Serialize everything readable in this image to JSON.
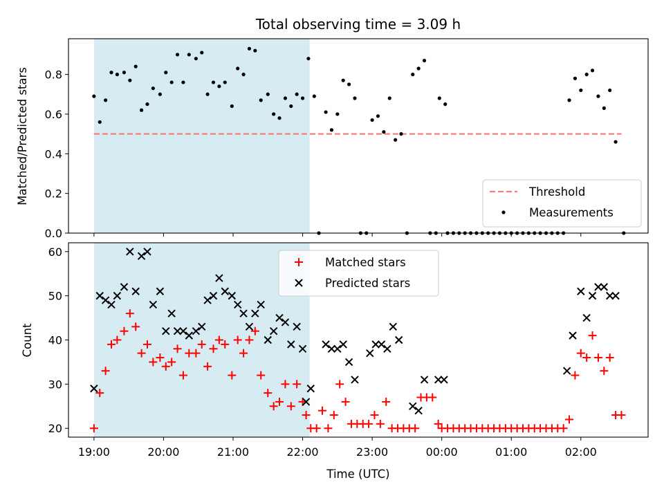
{
  "chart_data": [
    {
      "panel": "top",
      "type": "scatter",
      "title": "Total observing time = 3.09 h",
      "xlabel": "",
      "ylabel": "Matched/Predicted stars",
      "xlim": [
        "18:38",
        "02:58"
      ],
      "ylim": [
        0,
        0.98
      ],
      "yticks": [
        0.0,
        0.2,
        0.4,
        0.6,
        0.8
      ],
      "ytick_labels": [
        "0.0",
        "0.2",
        "0.4",
        "0.6",
        "0.8"
      ],
      "shaded_interval": [
        "19:00",
        "22:06"
      ],
      "legend_position": "lower right",
      "threshold": {
        "name": "Threshold",
        "color": "#f08080",
        "style": "dashed",
        "x": [
          "19:00",
          "02:35"
        ],
        "y": [
          0.5,
          0.5
        ]
      },
      "series": [
        {
          "name": "Measurements",
          "color": "#000000",
          "marker": "point",
          "points": [
            [
              "19:00",
              0.69
            ],
            [
              "19:05",
              0.56
            ],
            [
              "19:10",
              0.67
            ],
            [
              "19:15",
              0.81
            ],
            [
              "19:20",
              0.8
            ],
            [
              "19:26",
              0.81
            ],
            [
              "19:31",
              0.77
            ],
            [
              "19:36",
              0.84
            ],
            [
              "19:41",
              0.62
            ],
            [
              "19:46",
              0.65
            ],
            [
              "19:51",
              0.73
            ],
            [
              "19:57",
              0.7
            ],
            [
              "20:02",
              0.81
            ],
            [
              "20:07",
              0.76
            ],
            [
              "20:12",
              0.9
            ],
            [
              "20:17",
              0.76
            ],
            [
              "20:22",
              0.9
            ],
            [
              "20:28",
              0.88
            ],
            [
              "20:33",
              0.91
            ],
            [
              "20:38",
              0.7
            ],
            [
              "20:43",
              0.76
            ],
            [
              "20:48",
              0.74
            ],
            [
              "20:53",
              0.76
            ],
            [
              "20:59",
              0.64
            ],
            [
              "21:04",
              0.83
            ],
            [
              "21:09",
              0.8
            ],
            [
              "21:14",
              0.93
            ],
            [
              "21:19",
              0.92
            ],
            [
              "21:24",
              0.67
            ],
            [
              "21:30",
              0.7
            ],
            [
              "21:35",
              0.6
            ],
            [
              "21:40",
              0.58
            ],
            [
              "21:45",
              0.68
            ],
            [
              "21:50",
              0.64
            ],
            [
              "21:55",
              0.7
            ],
            [
              "22:00",
              0.68
            ],
            [
              "22:05",
              0.88
            ],
            [
              "22:10",
              0.69
            ],
            [
              "22:14",
              0.0
            ],
            [
              "22:20",
              0.61
            ],
            [
              "22:25",
              0.52
            ],
            [
              "22:30",
              0.6
            ],
            [
              "22:35",
              0.77
            ],
            [
              "22:40",
              0.75
            ],
            [
              "22:45",
              0.68
            ],
            [
              "22:50",
              0.0
            ],
            [
              "22:55",
              0.0
            ],
            [
              "23:00",
              0.57
            ],
            [
              "23:05",
              0.59
            ],
            [
              "23:10",
              0.51
            ],
            [
              "23:15",
              0.68
            ],
            [
              "23:20",
              0.47
            ],
            [
              "23:25",
              0.5
            ],
            [
              "23:30",
              0.0
            ],
            [
              "23:35",
              0.8
            ],
            [
              "23:40",
              0.83
            ],
            [
              "23:45",
              0.87
            ],
            [
              "23:50",
              0.0
            ],
            [
              "23:55",
              0.0
            ],
            [
              "23:58",
              0.68
            ],
            [
              "00:03",
              0.65
            ],
            [
              "00:05",
              0.0
            ],
            [
              "00:10",
              0.0
            ],
            [
              "00:15",
              0.0
            ],
            [
              "00:20",
              0.0
            ],
            [
              "00:25",
              0.0
            ],
            [
              "00:30",
              0.0
            ],
            [
              "00:35",
              0.0
            ],
            [
              "00:40",
              0.0
            ],
            [
              "00:45",
              0.0
            ],
            [
              "00:50",
              0.0
            ],
            [
              "00:55",
              0.0
            ],
            [
              "01:00",
              0.0
            ],
            [
              "01:05",
              0.0
            ],
            [
              "01:10",
              0.0
            ],
            [
              "01:15",
              0.0
            ],
            [
              "01:20",
              0.0
            ],
            [
              "01:25",
              0.0
            ],
            [
              "01:30",
              0.0
            ],
            [
              "01:35",
              0.0
            ],
            [
              "01:40",
              0.0
            ],
            [
              "01:45",
              0.0
            ],
            [
              "01:50",
              0.67
            ],
            [
              "01:55",
              0.78
            ],
            [
              "02:00",
              0.72
            ],
            [
              "02:05",
              0.8
            ],
            [
              "02:10",
              0.82
            ],
            [
              "02:15",
              0.69
            ],
            [
              "02:20",
              0.63
            ],
            [
              "02:25",
              0.72
            ],
            [
              "02:30",
              0.46
            ],
            [
              "02:37",
              0.0
            ]
          ]
        }
      ]
    },
    {
      "panel": "bottom",
      "type": "scatter",
      "title": "",
      "xlabel": "Time (UTC)",
      "ylabel": "Count",
      "xlim": [
        "18:38",
        "02:58"
      ],
      "ylim": [
        18,
        62
      ],
      "xticks": [
        "19:00",
        "20:00",
        "21:00",
        "22:00",
        "23:00",
        "00:00",
        "01:00",
        "02:00"
      ],
      "yticks": [
        20,
        30,
        40,
        50,
        60
      ],
      "shaded_interval": [
        "19:00",
        "22:06"
      ],
      "legend_position": "upper center",
      "series": [
        {
          "name": "Matched stars",
          "color": "#ff0000",
          "marker": "plus",
          "points": [
            [
              "19:00",
              20
            ],
            [
              "19:05",
              28
            ],
            [
              "19:10",
              33
            ],
            [
              "19:15",
              39
            ],
            [
              "19:20",
              40
            ],
            [
              "19:26",
              42
            ],
            [
              "19:31",
              46
            ],
            [
              "19:36",
              43
            ],
            [
              "19:41",
              37
            ],
            [
              "19:46",
              39
            ],
            [
              "19:51",
              35
            ],
            [
              "19:57",
              36
            ],
            [
              "20:02",
              34
            ],
            [
              "20:07",
              35
            ],
            [
              "20:12",
              38
            ],
            [
              "20:17",
              32
            ],
            [
              "20:22",
              37
            ],
            [
              "20:28",
              37
            ],
            [
              "20:33",
              39
            ],
            [
              "20:38",
              34
            ],
            [
              "20:43",
              38
            ],
            [
              "20:48",
              40
            ],
            [
              "20:53",
              39
            ],
            [
              "20:59",
              32
            ],
            [
              "21:04",
              40
            ],
            [
              "21:09",
              37
            ],
            [
              "21:14",
              40
            ],
            [
              "21:19",
              42
            ],
            [
              "21:24",
              32
            ],
            [
              "21:30",
              28
            ],
            [
              "21:35",
              25
            ],
            [
              "21:40",
              26
            ],
            [
              "21:45",
              30
            ],
            [
              "21:50",
              25
            ],
            [
              "21:55",
              30
            ],
            [
              "22:00",
              26
            ],
            [
              "22:03",
              23
            ],
            [
              "22:07",
              20
            ],
            [
              "22:12",
              20
            ],
            [
              "22:17",
              24
            ],
            [
              "22:22",
              20
            ],
            [
              "22:27",
              23
            ],
            [
              "22:32",
              30
            ],
            [
              "22:37",
              26
            ],
            [
              "22:42",
              21
            ],
            [
              "22:47",
              21
            ],
            [
              "22:52",
              21
            ],
            [
              "22:57",
              21
            ],
            [
              "23:02",
              23
            ],
            [
              "23:07",
              21
            ],
            [
              "23:12",
              26
            ],
            [
              "23:17",
              20
            ],
            [
              "23:22",
              20
            ],
            [
              "23:27",
              20
            ],
            [
              "23:32",
              20
            ],
            [
              "23:37",
              20
            ],
            [
              "23:42",
              27
            ],
            [
              "23:47",
              27
            ],
            [
              "23:52",
              27
            ],
            [
              "23:57",
              21
            ],
            [
              "00:00",
              20
            ],
            [
              "00:05",
              20
            ],
            [
              "00:10",
              20
            ],
            [
              "00:15",
              20
            ],
            [
              "00:20",
              20
            ],
            [
              "00:25",
              20
            ],
            [
              "00:30",
              20
            ],
            [
              "00:35",
              20
            ],
            [
              "00:40",
              20
            ],
            [
              "00:45",
              20
            ],
            [
              "00:50",
              20
            ],
            [
              "00:55",
              20
            ],
            [
              "01:00",
              20
            ],
            [
              "01:05",
              20
            ],
            [
              "01:10",
              20
            ],
            [
              "01:15",
              20
            ],
            [
              "01:20",
              20
            ],
            [
              "01:25",
              20
            ],
            [
              "01:30",
              20
            ],
            [
              "01:35",
              20
            ],
            [
              "01:40",
              20
            ],
            [
              "01:45",
              20
            ],
            [
              "01:50",
              22
            ],
            [
              "01:55",
              32
            ],
            [
              "02:00",
              37
            ],
            [
              "02:05",
              36
            ],
            [
              "02:10",
              41
            ],
            [
              "02:15",
              36
            ],
            [
              "02:20",
              33
            ],
            [
              "02:25",
              36
            ],
            [
              "02:30",
              23
            ],
            [
              "02:35",
              23
            ]
          ]
        },
        {
          "name": "Predicted stars",
          "color": "#000000",
          "marker": "x",
          "points": [
            [
              "19:00",
              29
            ],
            [
              "19:05",
              50
            ],
            [
              "19:10",
              49
            ],
            [
              "19:15",
              48
            ],
            [
              "19:20",
              50
            ],
            [
              "19:26",
              52
            ],
            [
              "19:31",
              60
            ],
            [
              "19:36",
              51
            ],
            [
              "19:41",
              59
            ],
            [
              "19:46",
              60
            ],
            [
              "19:51",
              48
            ],
            [
              "19:57",
              51
            ],
            [
              "20:02",
              42
            ],
            [
              "20:07",
              46
            ],
            [
              "20:12",
              42
            ],
            [
              "20:17",
              42
            ],
            [
              "20:22",
              41
            ],
            [
              "20:28",
              42
            ],
            [
              "20:33",
              43
            ],
            [
              "20:38",
              49
            ],
            [
              "20:43",
              50
            ],
            [
              "20:48",
              54
            ],
            [
              "20:53",
              51
            ],
            [
              "20:59",
              50
            ],
            [
              "21:04",
              48
            ],
            [
              "21:09",
              46
            ],
            [
              "21:14",
              43
            ],
            [
              "21:19",
              46
            ],
            [
              "21:24",
              48
            ],
            [
              "21:30",
              40
            ],
            [
              "21:35",
              42
            ],
            [
              "21:40",
              45
            ],
            [
              "21:45",
              44
            ],
            [
              "21:50",
              39
            ],
            [
              "21:55",
              43
            ],
            [
              "22:00",
              38
            ],
            [
              "22:03",
              26
            ],
            [
              "22:07",
              29
            ],
            [
              "22:20",
              39
            ],
            [
              "22:25",
              38
            ],
            [
              "22:30",
              38
            ],
            [
              "22:35",
              39
            ],
            [
              "22:40",
              35
            ],
            [
              "22:45",
              31
            ],
            [
              "22:58",
              37
            ],
            [
              "23:03",
              39
            ],
            [
              "23:08",
              39
            ],
            [
              "23:13",
              38
            ],
            [
              "23:18",
              43
            ],
            [
              "23:23",
              40
            ],
            [
              "23:35",
              25
            ],
            [
              "23:40",
              24
            ],
            [
              "23:45",
              31
            ],
            [
              "23:57",
              31
            ],
            [
              "00:02",
              31
            ],
            [
              "01:48",
              33
            ],
            [
              "01:53",
              41
            ],
            [
              "02:00",
              51
            ],
            [
              "02:05",
              45
            ],
            [
              "02:10",
              50
            ],
            [
              "02:15",
              52
            ],
            [
              "02:20",
              52
            ],
            [
              "02:25",
              50
            ],
            [
              "02:30",
              50
            ]
          ]
        }
      ]
    }
  ]
}
